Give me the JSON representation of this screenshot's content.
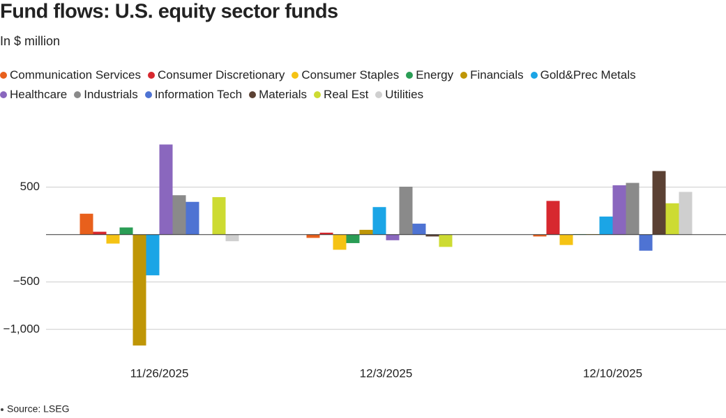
{
  "chart_data": {
    "type": "bar",
    "title": "Fund flows: U.S. equity sector funds",
    "subtitle": "In $ million",
    "source": "Source: LSEG",
    "categories": [
      "11/26/2025",
      "12/3/2025",
      "12/10/2025"
    ],
    "series": [
      {
        "name": "Communication Services",
        "color": "#e8601c",
        "values": [
          220,
          -35,
          -20
        ]
      },
      {
        "name": "Consumer Discretionary",
        "color": "#d7282f",
        "values": [
          30,
          20,
          355
        ]
      },
      {
        "name": "Consumer Staples",
        "color": "#f5c314",
        "values": [
          -95,
          -160,
          -110
        ]
      },
      {
        "name": "Energy",
        "color": "#2a9d55",
        "values": [
          75,
          -90,
          5
        ]
      },
      {
        "name": "Financials",
        "color": "#bf9606",
        "values": [
          -1170,
          50,
          5
        ]
      },
      {
        "name": "Gold&Prec Metals",
        "color": "#1ba5e6",
        "values": [
          -430,
          290,
          190
        ]
      },
      {
        "name": "Healthcare",
        "color": "#8a67be",
        "values": [
          950,
          -60,
          520
        ]
      },
      {
        "name": "Industrials",
        "color": "#8a8a8a",
        "values": [
          415,
          505,
          545
        ]
      },
      {
        "name": "Information Tech",
        "color": "#4e73d3",
        "values": [
          345,
          115,
          -170
        ]
      },
      {
        "name": "Materials",
        "color": "#5b4133",
        "values": [
          0,
          -20,
          670
        ]
      },
      {
        "name": "Real Est",
        "color": "#cddb32",
        "values": [
          395,
          -130,
          330
        ]
      },
      {
        "name": "Utilities",
        "color": "#cfcfcf",
        "values": [
          -70,
          0,
          450
        ]
      }
    ],
    "ylim": [
      -1200,
      1100
    ],
    "yticks": [
      {
        "value": -1000,
        "label": "−1,000"
      },
      {
        "value": -500,
        "label": "−500"
      },
      500
    ],
    "grid": true
  }
}
